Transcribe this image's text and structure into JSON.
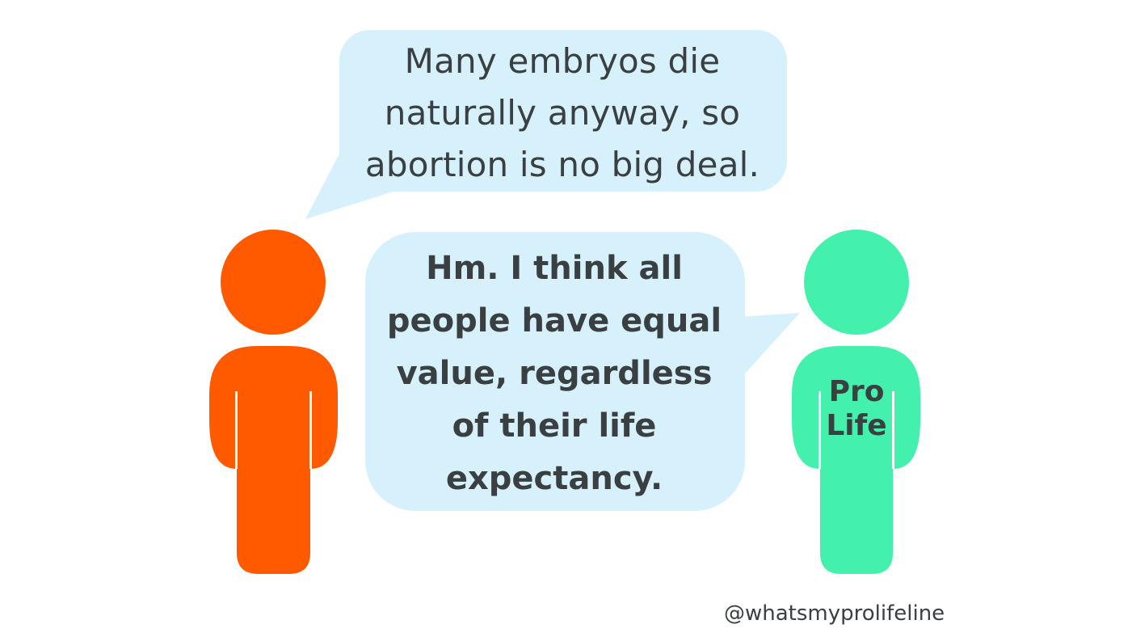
{
  "speech_top": {
    "lines": [
      "Many embryos die",
      "naturally anyway, so",
      "abortion is no big deal."
    ]
  },
  "speech_bottom": {
    "lines": [
      "Hm. I think all",
      "people have equal",
      "value, regardless",
      "of their life",
      "expectancy."
    ]
  },
  "shirt": {
    "line1": "Pro",
    "line2": "Life"
  },
  "handle": "@whatsmyprolifeline",
  "colors": {
    "bubble": "#d6f1fc",
    "person_left": "#ff5a00",
    "person_right": "#43f1ac",
    "text": "#3a3f41"
  }
}
